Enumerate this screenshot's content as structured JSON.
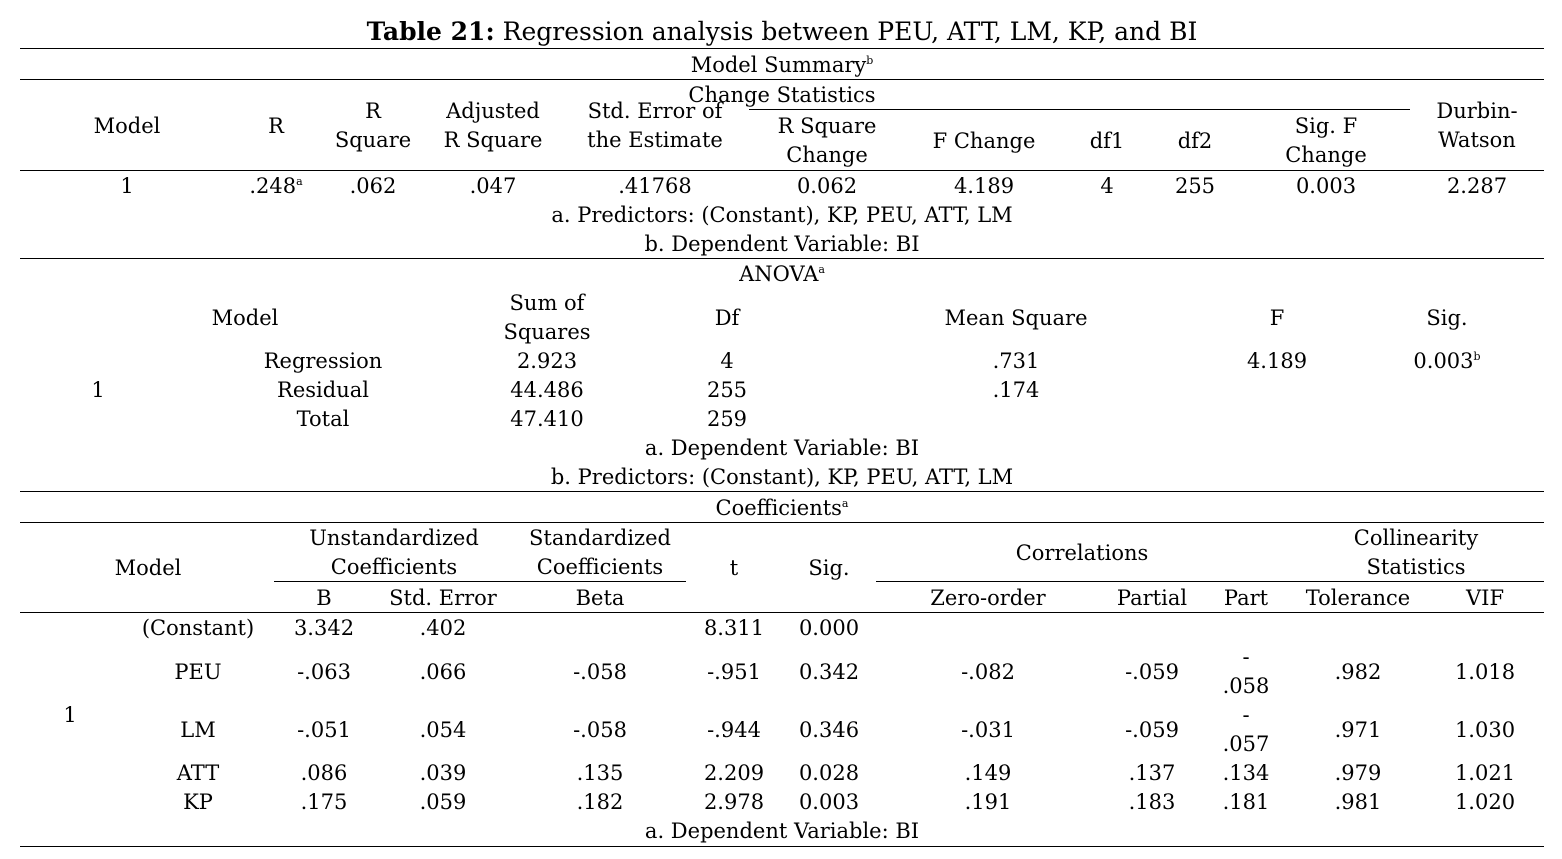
{
  "title": {
    "bold": "Table 21:",
    "rest": " Regression analysis between PEU, ATT, LM, KP, and BI"
  },
  "model_summary": {
    "heading": "Model Summary",
    "heading_sup": "b",
    "headers": {
      "model": "Model",
      "r": "R",
      "r_square_1": "R",
      "r_square_2": "Square",
      "adj_1": "Adjusted",
      "adj_2": "R Square",
      "std_1": "Std. Error of",
      "std_2": "the Estimate",
      "change_stats": "Change Statistics",
      "rsq_change_1": "R Square",
      "rsq_change_2": "Change",
      "f_change": "F Change",
      "df1": "df1",
      "df2": "df2",
      "sigf_1": "Sig. F",
      "sigf_2": "Change",
      "dw_1": "Durbin-",
      "dw_2": "Watson"
    },
    "row": {
      "model": "1",
      "r": ".248",
      "r_sup": "a",
      "r_square": ".062",
      "adj": ".047",
      "std_err": ".41768",
      "rsq_change": "0.062",
      "f_change": "4.189",
      "df1": "4",
      "df2": "255",
      "sig_f": "0.003",
      "dw": "2.287"
    },
    "note_a": "a. Predictors: (Constant), KP, PEU, ATT, LM",
    "note_b": "b. Dependent Variable: BI"
  },
  "anova": {
    "heading": "ANOVA",
    "heading_sup": "a",
    "headers": {
      "model": "Model",
      "ss_1": "Sum of",
      "ss_2": "Squares",
      "df": "Df",
      "ms": "Mean Square",
      "f": "F",
      "sig": "Sig."
    },
    "model_num": "1",
    "rows": [
      {
        "label": "Regression",
        "ss": "2.923",
        "df": "4",
        "ms": ".731",
        "f": "4.189",
        "sig": "0.003",
        "sig_sup": "b"
      },
      {
        "label": "Residual",
        "ss": "44.486",
        "df": "255",
        "ms": ".174"
      },
      {
        "label": "Total",
        "ss": "47.410",
        "df": "259"
      }
    ],
    "note_a": "a. Dependent Variable: BI",
    "note_b": "b. Predictors: (Constant), KP, PEU, ATT, LM"
  },
  "coefficients": {
    "heading": "Coefficients",
    "heading_sup": "a",
    "headers": {
      "model": "Model",
      "unstd_1": "Unstandardized",
      "unstd_2": "Coefficients",
      "std_1": "Standardized",
      "std_2": "Coefficients",
      "t": "t",
      "sig": "Sig.",
      "corr": "Correlations",
      "coll_1": "Collinearity",
      "coll_2": "Statistics",
      "b": "B",
      "std_error": "Std. Error",
      "beta": "Beta",
      "zero": "Zero-order",
      "partial": "Partial",
      "part": "Part",
      "tol": "Tolerance",
      "vif": "VIF"
    },
    "model_num": "1",
    "constant": {
      "label": "(Constant)",
      "b": "3.342",
      "se": ".402",
      "t": "8.311",
      "sig": "0.000"
    },
    "peu": {
      "label": "PEU",
      "b": "-.063",
      "se": ".066",
      "beta": "-.058",
      "t": "-.951",
      "sig": "0.342",
      "zero": "-.082",
      "partial": "-.059",
      "part_1": "-",
      "part_2": ".058",
      "tol": ".982",
      "vif": "1.018"
    },
    "lm": {
      "label": "LM",
      "b": "-.051",
      "se": ".054",
      "beta": "-.058",
      "t": "-.944",
      "sig": "0.346",
      "zero": "-.031",
      "partial": "-.059",
      "part_1": "-",
      "part_2": ".057",
      "tol": ".971",
      "vif": "1.030"
    },
    "att": {
      "label": "ATT",
      "b": ".086",
      "se": ".039",
      "beta": ".135",
      "t": "2.209",
      "sig": "0.028",
      "zero": ".149",
      "partial": ".137",
      "part": ".134",
      "tol": ".979",
      "vif": "1.021"
    },
    "kp": {
      "label": "KP",
      "b": ".175",
      "se": ".059",
      "beta": ".182",
      "t": "2.978",
      "sig": "0.003",
      "zero": ".191",
      "partial": ".183",
      "part": ".181",
      "tol": ".981",
      "vif": "1.020"
    },
    "note_a": "a. Dependent Variable: BI"
  }
}
